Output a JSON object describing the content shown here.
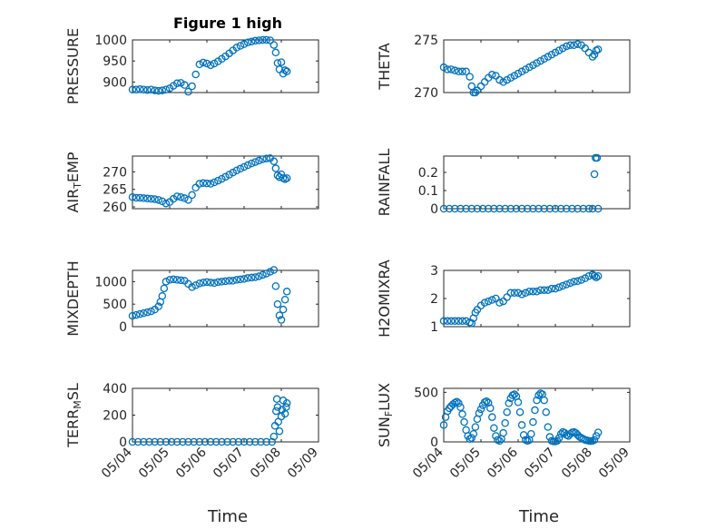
{
  "figure": {
    "title": "Figure 1 high",
    "xlabel": "Time",
    "x_ticks": [
      "05/04",
      "05/05",
      "05/06",
      "05/07",
      "05/08",
      "05/09"
    ],
    "marker_color": "#0072BD"
  },
  "chart_data": [
    {
      "type": "scatter",
      "name": "pressure",
      "ylabel_parts": [
        "PRESSURE"
      ],
      "ylim": [
        875,
        1000
      ],
      "yticks": [
        1000,
        950,
        900
      ],
      "ytick_labels": [
        "1000",
        "950",
        "900"
      ],
      "x": [
        4.0,
        4.1,
        4.2,
        4.3,
        4.4,
        4.5,
        4.6,
        4.7,
        4.8,
        4.9,
        5.0,
        5.1,
        5.2,
        5.3,
        5.4,
        5.5,
        5.6,
        5.7,
        5.8,
        5.9,
        6.0,
        6.1,
        6.2,
        6.3,
        6.4,
        6.5,
        6.6,
        6.7,
        6.8,
        6.9,
        7.0,
        7.1,
        7.2,
        7.3,
        7.4,
        7.5,
        7.6,
        7.7,
        7.8,
        7.85,
        7.9,
        7.95,
        8.0,
        8.05,
        8.1,
        8.15
      ],
      "y": [
        882,
        882,
        883,
        882,
        881,
        882,
        880,
        879,
        880,
        882,
        885,
        891,
        897,
        898,
        893,
        877,
        890,
        918,
        942,
        946,
        944,
        940,
        944,
        949,
        955,
        961,
        968,
        975,
        982,
        986,
        990,
        994,
        996,
        998,
        999,
        1000,
        1000,
        999,
        988,
        970,
        945,
        930,
        947,
        920,
        928,
        925
      ]
    },
    {
      "type": "scatter",
      "name": "theta",
      "ylabel_parts": [
        "THETA"
      ],
      "ylim": [
        270,
        275
      ],
      "yticks": [
        275,
        270
      ],
      "ytick_labels": [
        "275",
        "270"
      ],
      "x": [
        4.0,
        4.1,
        4.2,
        4.3,
        4.4,
        4.5,
        4.6,
        4.7,
        4.75,
        4.8,
        4.85,
        4.9,
        5.0,
        5.1,
        5.2,
        5.3,
        5.4,
        5.5,
        5.6,
        5.7,
        5.8,
        5.9,
        6.0,
        6.1,
        6.2,
        6.3,
        6.4,
        6.5,
        6.6,
        6.7,
        6.8,
        6.9,
        7.0,
        7.1,
        7.2,
        7.3,
        7.4,
        7.5,
        7.6,
        7.7,
        7.8,
        7.9,
        8.0,
        8.05,
        8.1,
        8.15
      ],
      "y": [
        272.4,
        272.2,
        272.2,
        272.1,
        272.0,
        272.0,
        272.0,
        271.5,
        270.6,
        270.0,
        270.0,
        270.2,
        270.6,
        271.0,
        271.4,
        271.7,
        271.6,
        271.2,
        271.0,
        271.2,
        271.4,
        271.6,
        271.8,
        272.0,
        272.2,
        272.4,
        272.6,
        272.8,
        273.0,
        273.2,
        273.4,
        273.6,
        273.8,
        274.0,
        274.2,
        274.4,
        274.5,
        274.5,
        274.6,
        274.5,
        274.2,
        273.8,
        273.4,
        273.6,
        274.0,
        274.1
      ]
    },
    {
      "type": "scatter",
      "name": "air_temp",
      "ylabel_parts": [
        "AIR",
        "T",
        "EMP"
      ],
      "ylim": [
        259.5,
        274.5
      ],
      "yticks": [
        270,
        265,
        260
      ],
      "ytick_labels": [
        "270",
        "265",
        "260"
      ],
      "x": [
        4.0,
        4.1,
        4.2,
        4.3,
        4.4,
        4.5,
        4.6,
        4.7,
        4.8,
        4.9,
        5.0,
        5.1,
        5.2,
        5.3,
        5.4,
        5.5,
        5.6,
        5.7,
        5.8,
        5.9,
        6.0,
        6.1,
        6.2,
        6.3,
        6.4,
        6.5,
        6.6,
        6.7,
        6.8,
        6.9,
        7.0,
        7.1,
        7.2,
        7.3,
        7.4,
        7.5,
        7.6,
        7.7,
        7.8,
        7.85,
        7.9,
        7.95,
        8.0,
        8.05,
        8.1,
        8.15
      ],
      "y": [
        262.8,
        262.6,
        262.6,
        262.5,
        262.4,
        262.3,
        262.2,
        262.0,
        261.6,
        261.0,
        261.4,
        262.3,
        263.0,
        262.8,
        262.5,
        262.0,
        263.4,
        265.5,
        266.6,
        266.8,
        266.7,
        266.6,
        267.0,
        267.5,
        268.0,
        268.6,
        269.2,
        269.8,
        270.4,
        270.9,
        271.4,
        271.9,
        272.4,
        272.8,
        273.2,
        273.6,
        273.8,
        273.9,
        273.0,
        271.0,
        269.0,
        268.5,
        269.3,
        268.2,
        267.9,
        268.2
      ]
    },
    {
      "type": "scatter",
      "name": "rainfall",
      "ylabel_parts": [
        "RAINFALL"
      ],
      "ylim": [
        0,
        0.29
      ],
      "yticks": [
        0.2,
        0.1,
        0
      ],
      "ytick_labels": [
        "0.2",
        "0.1",
        "0"
      ],
      "x": [
        4.0,
        4.15,
        4.3,
        4.45,
        4.6,
        4.75,
        4.9,
        5.05,
        5.2,
        5.35,
        5.5,
        5.65,
        5.8,
        5.95,
        6.1,
        6.25,
        6.4,
        6.55,
        6.7,
        6.85,
        7.0,
        7.15,
        7.3,
        7.45,
        7.6,
        7.75,
        7.9,
        8.0,
        8.05,
        8.08,
        8.12,
        8.15
      ],
      "y": [
        0,
        0,
        0,
        0,
        0,
        0,
        0,
        0,
        0,
        0,
        0,
        0,
        0,
        0,
        0,
        0,
        0,
        0,
        0,
        0,
        0,
        0,
        0,
        0,
        0,
        0,
        0,
        0,
        0.19,
        0.28,
        0.28,
        0
      ]
    },
    {
      "type": "scatter",
      "name": "mixdepth",
      "ylabel_parts": [
        "MIXDEPTH"
      ],
      "ylim": [
        0,
        1250
      ],
      "yticks": [
        1000,
        500,
        0
      ],
      "ytick_labels": [
        "1000",
        "500",
        "0"
      ],
      "x": [
        4.0,
        4.1,
        4.2,
        4.3,
        4.4,
        4.5,
        4.6,
        4.7,
        4.75,
        4.8,
        4.85,
        4.9,
        5.0,
        5.1,
        5.2,
        5.3,
        5.4,
        5.5,
        5.6,
        5.7,
        5.8,
        5.9,
        6.0,
        6.1,
        6.2,
        6.3,
        6.4,
        6.5,
        6.6,
        6.7,
        6.8,
        6.9,
        7.0,
        7.1,
        7.2,
        7.3,
        7.4,
        7.5,
        7.6,
        7.7,
        7.8,
        7.85,
        7.9,
        7.95,
        8.0,
        8.05,
        8.1,
        8.15
      ],
      "y": [
        240,
        260,
        280,
        300,
        320,
        340,
        380,
        450,
        550,
        680,
        850,
        1000,
        1040,
        1050,
        1040,
        1030,
        1020,
        950,
        880,
        920,
        960,
        980,
        990,
        980,
        970,
        990,
        1000,
        1010,
        1020,
        1020,
        1040,
        1050,
        1060,
        1080,
        1090,
        1100,
        1120,
        1150,
        1180,
        1220,
        1260,
        900,
        500,
        250,
        150,
        380,
        600,
        780
      ]
    },
    {
      "type": "scatter",
      "name": "h2omixra",
      "ylabel_parts": [
        "H2OMIXRA"
      ],
      "ylim": [
        1,
        3
      ],
      "yticks": [
        3,
        2,
        1
      ],
      "ytick_labels": [
        "3",
        "2",
        "1"
      ],
      "x": [
        4.0,
        4.1,
        4.2,
        4.3,
        4.4,
        4.5,
        4.6,
        4.7,
        4.75,
        4.8,
        4.85,
        4.9,
        5.0,
        5.1,
        5.2,
        5.3,
        5.4,
        5.5,
        5.6,
        5.7,
        5.8,
        5.9,
        6.0,
        6.1,
        6.2,
        6.3,
        6.4,
        6.5,
        6.6,
        6.7,
        6.8,
        6.9,
        7.0,
        7.1,
        7.2,
        7.3,
        7.4,
        7.5,
        7.6,
        7.7,
        7.8,
        7.9,
        8.0,
        8.05,
        8.1,
        8.15
      ],
      "y": [
        1.2,
        1.2,
        1.2,
        1.2,
        1.2,
        1.2,
        1.2,
        1.15,
        1.12,
        1.3,
        1.5,
        1.6,
        1.75,
        1.85,
        1.9,
        1.95,
        2.0,
        1.85,
        1.9,
        2.05,
        2.2,
        2.2,
        2.2,
        2.15,
        2.2,
        2.25,
        2.25,
        2.25,
        2.3,
        2.3,
        2.3,
        2.35,
        2.35,
        2.4,
        2.45,
        2.5,
        2.55,
        2.6,
        2.62,
        2.66,
        2.72,
        2.8,
        2.85,
        2.8,
        2.75,
        2.8
      ]
    },
    {
      "type": "scatter",
      "name": "terr_msl",
      "ylabel_parts": [
        "TERR",
        "M",
        "SL"
      ],
      "ylim": [
        0,
        400
      ],
      "yticks": [
        400,
        200,
        0
      ],
      "ytick_labels": [
        "400",
        "200",
        "0"
      ],
      "x": [
        4.0,
        4.15,
        4.3,
        4.45,
        4.6,
        4.75,
        4.9,
        5.05,
        5.2,
        5.35,
        5.5,
        5.65,
        5.8,
        5.95,
        6.1,
        6.25,
        6.4,
        6.55,
        6.7,
        6.85,
        7.0,
        7.15,
        7.3,
        7.45,
        7.6,
        7.75,
        7.8,
        7.83,
        7.86,
        7.88,
        7.9,
        7.92,
        7.95,
        8.0,
        8.02,
        8.05,
        8.1,
        8.13,
        8.15
      ],
      "y": [
        0,
        0,
        0,
        0,
        0,
        0,
        0,
        0,
        0,
        0,
        0,
        0,
        0,
        0,
        0,
        0,
        0,
        0,
        0,
        0,
        0,
        0,
        0,
        0,
        0,
        0,
        40,
        120,
        230,
        320,
        260,
        150,
        80,
        190,
        240,
        310,
        210,
        260,
        290
      ]
    },
    {
      "type": "scatter",
      "name": "sun_flux",
      "ylabel_parts": [
        "SUN",
        "F",
        "LUX"
      ],
      "ylim": [
        0,
        540
      ],
      "yticks": [
        500,
        0
      ],
      "ytick_labels": [
        "500",
        "0"
      ],
      "x": [
        4.0,
        4.05,
        4.1,
        4.15,
        4.2,
        4.25,
        4.3,
        4.35,
        4.4,
        4.45,
        4.5,
        4.55,
        4.6,
        4.65,
        4.7,
        4.75,
        4.8,
        4.85,
        4.9,
        4.95,
        5.0,
        5.05,
        5.1,
        5.15,
        5.2,
        5.25,
        5.3,
        5.35,
        5.4,
        5.45,
        5.5,
        5.55,
        5.6,
        5.65,
        5.7,
        5.75,
        5.8,
        5.85,
        5.9,
        5.95,
        6.0,
        6.05,
        6.1,
        6.15,
        6.2,
        6.25,
        6.3,
        6.35,
        6.4,
        6.45,
        6.5,
        6.55,
        6.6,
        6.65,
        6.7,
        6.75,
        6.8,
        6.85,
        6.9,
        6.95,
        7.0,
        7.05,
        7.1,
        7.15,
        7.2,
        7.25,
        7.3,
        7.35,
        7.4,
        7.45,
        7.5,
        7.55,
        7.6,
        7.65,
        7.7,
        7.75,
        7.8,
        7.85,
        7.9,
        7.95,
        8.0,
        8.05,
        8.1,
        8.15
      ],
      "y": [
        170,
        250,
        310,
        340,
        360,
        380,
        395,
        405,
        390,
        350,
        280,
        200,
        120,
        60,
        30,
        40,
        80,
        150,
        230,
        290,
        330,
        370,
        400,
        410,
        395,
        340,
        250,
        140,
        60,
        20,
        10,
        30,
        90,
        190,
        300,
        390,
        440,
        470,
        480,
        460,
        400,
        300,
        170,
        70,
        20,
        10,
        20,
        80,
        200,
        320,
        420,
        470,
        490,
        480,
        420,
        300,
        150,
        50,
        10,
        5,
        5,
        10,
        40,
        80,
        100,
        90,
        70,
        60,
        80,
        95,
        100,
        90,
        70,
        50,
        40,
        30,
        20,
        15,
        10,
        8,
        10,
        20,
        60,
        95
      ]
    }
  ]
}
